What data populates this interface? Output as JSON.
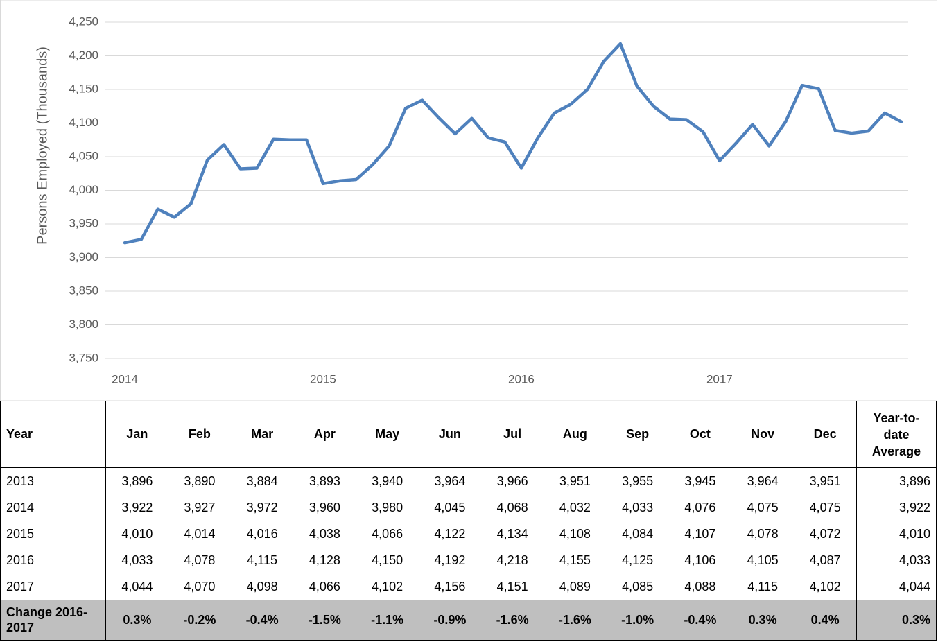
{
  "chart_data": {
    "type": "line",
    "y_label": "Persons Employed (Thousands)",
    "categories": [
      "2014",
      null,
      null,
      null,
      null,
      null,
      null,
      null,
      null,
      null,
      null,
      null,
      "2015",
      null,
      null,
      null,
      null,
      null,
      null,
      null,
      null,
      null,
      null,
      null,
      "2016",
      null,
      null,
      null,
      null,
      null,
      null,
      null,
      null,
      null,
      null,
      null,
      "2017",
      null,
      null,
      null,
      null,
      null,
      null,
      null,
      null,
      null,
      null,
      null
    ],
    "series": [
      {
        "color": "#4f81bd",
        "values": [
          3922,
          3927,
          3972,
          3960,
          3980,
          4045,
          4068,
          4032,
          4033,
          4076,
          4075,
          4075,
          4010,
          4014,
          4016,
          4038,
          4066,
          4122,
          4134,
          4108,
          4084,
          4107,
          4078,
          4072,
          4033,
          4078,
          4115,
          4128,
          4150,
          4192,
          4218,
          4155,
          4125,
          4106,
          4105,
          4087,
          4044,
          4070,
          4098,
          4066,
          4102,
          4156,
          4151,
          4089,
          4085,
          4088,
          4115,
          4102
        ]
      }
    ],
    "ylim": [
      3750,
      4250
    ],
    "yticks": [
      {
        "value": 3750,
        "label": "3,750"
      },
      {
        "value": 3800,
        "label": "3,800"
      },
      {
        "value": 3850,
        "label": "3,850"
      },
      {
        "value": 3900,
        "label": "3,900"
      },
      {
        "value": 3950,
        "label": "3,950"
      },
      {
        "value": 4000,
        "label": "4,000"
      },
      {
        "value": 4050,
        "label": "4,050"
      },
      {
        "value": 4100,
        "label": "4,100"
      },
      {
        "value": 4150,
        "label": "4,150"
      },
      {
        "value": 4200,
        "label": "4,200"
      },
      {
        "value": 4250,
        "label": "4,250"
      }
    ],
    "grid": true
  },
  "table": {
    "header": [
      "Year",
      "Jan",
      "Feb",
      "Mar",
      "Apr",
      "May",
      "Jun",
      "Jul",
      "Aug",
      "Sep",
      "Oct",
      "Nov",
      "Dec",
      "Year-to-date Average"
    ],
    "rows": [
      [
        "2013",
        "3,896",
        "3,890",
        "3,884",
        "3,893",
        "3,940",
        "3,964",
        "3,966",
        "3,951",
        "3,955",
        "3,945",
        "3,964",
        "3,951",
        "3,896"
      ],
      [
        "2014",
        "3,922",
        "3,927",
        "3,972",
        "3,960",
        "3,980",
        "4,045",
        "4,068",
        "4,032",
        "4,033",
        "4,076",
        "4,075",
        "4,075",
        "3,922"
      ],
      [
        "2015",
        "4,010",
        "4,014",
        "4,016",
        "4,038",
        "4,066",
        "4,122",
        "4,134",
        "4,108",
        "4,084",
        "4,107",
        "4,078",
        "4,072",
        "4,010"
      ],
      [
        "2016",
        "4,033",
        "4,078",
        "4,115",
        "4,128",
        "4,150",
        "4,192",
        "4,218",
        "4,155",
        "4,125",
        "4,106",
        "4,105",
        "4,087",
        "4,033"
      ],
      [
        "2017",
        "4,044",
        "4,070",
        "4,098",
        "4,066",
        "4,102",
        "4,156",
        "4,151",
        "4,089",
        "4,085",
        "4,088",
        "4,115",
        "4,102",
        "4,044"
      ]
    ],
    "change_row": [
      "Change 2016-2017",
      "0.3%",
      "-0.2%",
      "-0.4%",
      "-1.5%",
      "-1.1%",
      "-0.9%",
      "-1.6%",
      "-1.6%",
      "-1.0%",
      "-0.4%",
      "0.3%",
      "0.4%",
      "0.3%"
    ]
  }
}
